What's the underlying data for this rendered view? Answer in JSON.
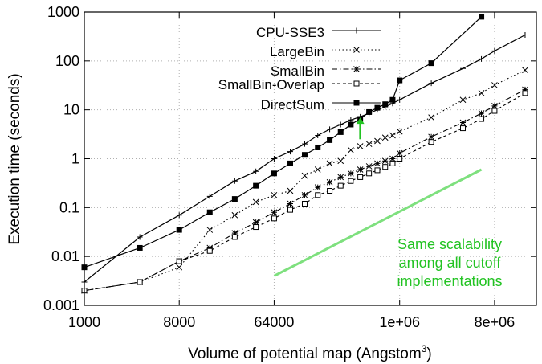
{
  "chart_data": {
    "type": "line",
    "title": "",
    "xlabel": "Volume of potential map (Angstom",
    "xlabel_superscript": "3",
    "xlabel_suffix": ")",
    "ylabel": "Execution time (seconds)",
    "xscale": "log",
    "yscale": "log",
    "xlim": [
      1000,
      20000000
    ],
    "ylim": [
      0.001,
      1000
    ],
    "x_ticks": [
      1000,
      8000,
      64000,
      1000000,
      8000000
    ],
    "x_tick_labels": [
      "1000",
      "8000",
      "64000",
      "1e+06",
      "8e+06"
    ],
    "y_ticks": [
      0.001,
      0.01,
      0.1,
      1,
      10,
      100,
      1000
    ],
    "y_tick_labels": [
      "0.001",
      "0.01",
      "0.1",
      "1",
      "10",
      "100",
      "1000"
    ],
    "grid": true,
    "legend_position": "top-left",
    "series": [
      {
        "name": "CPU-SSE3",
        "marker": "plus",
        "dash": "solid",
        "points": [
          [
            1000,
            0.003
          ],
          [
            3375,
            0.025
          ],
          [
            8000,
            0.07
          ],
          [
            15625,
            0.17
          ],
          [
            27000,
            0.35
          ],
          [
            42875,
            0.55
          ],
          [
            64000,
            1.0
          ],
          [
            91125,
            1.4
          ],
          [
            125000,
            2.0
          ],
          [
            166375,
            3.0
          ],
          [
            216000,
            4.0
          ],
          [
            274625,
            5.0
          ],
          [
            343000,
            6.2
          ],
          [
            421875,
            7.2
          ],
          [
            512000,
            8.5
          ],
          [
            614125,
            10
          ],
          [
            729000,
            11.5
          ],
          [
            857375,
            13.5
          ],
          [
            1000000,
            16
          ],
          [
            2000000,
            35
          ],
          [
            4000000,
            70
          ],
          [
            6000000,
            110
          ],
          [
            8000000,
            160
          ],
          [
            15625000,
            340
          ]
        ]
      },
      {
        "name": "LargeBin",
        "marker": "x",
        "dash": "dotted",
        "points": [
          [
            1000,
            0.002
          ],
          [
            3375,
            0.003
          ],
          [
            8000,
            0.006
          ],
          [
            15625,
            0.035
          ],
          [
            27000,
            0.07
          ],
          [
            42875,
            0.13
          ],
          [
            64000,
            0.18
          ],
          [
            91125,
            0.22
          ],
          [
            125000,
            0.45
          ],
          [
            166375,
            0.6
          ],
          [
            216000,
            0.8
          ],
          [
            274625,
            0.9
          ],
          [
            343000,
            1.5
          ],
          [
            421875,
            1.8
          ],
          [
            512000,
            2.0
          ],
          [
            614125,
            2.3
          ],
          [
            729000,
            2.7
          ],
          [
            857375,
            3.0
          ],
          [
            1000000,
            3.6
          ],
          [
            2000000,
            7.0
          ],
          [
            4000000,
            16
          ],
          [
            6000000,
            22
          ],
          [
            8000000,
            32
          ],
          [
            15625000,
            65
          ]
        ]
      },
      {
        "name": "SmallBin",
        "marker": "star",
        "dash": "dashdot",
        "points": [
          [
            1000,
            0.002
          ],
          [
            3375,
            0.003
          ],
          [
            8000,
            0.008
          ],
          [
            15625,
            0.015
          ],
          [
            27000,
            0.03
          ],
          [
            42875,
            0.05
          ],
          [
            64000,
            0.08
          ],
          [
            91125,
            0.12
          ],
          [
            125000,
            0.18
          ],
          [
            166375,
            0.26
          ],
          [
            216000,
            0.33
          ],
          [
            274625,
            0.42
          ],
          [
            343000,
            0.5
          ],
          [
            421875,
            0.6
          ],
          [
            512000,
            0.7
          ],
          [
            614125,
            0.8
          ],
          [
            729000,
            0.9
          ],
          [
            857375,
            1.0
          ],
          [
            1000000,
            1.3
          ],
          [
            2000000,
            2.8
          ],
          [
            4000000,
            5.5
          ],
          [
            6000000,
            8.5
          ],
          [
            8000000,
            12
          ],
          [
            15625000,
            26
          ]
        ]
      },
      {
        "name": "SmallBin-Overlap",
        "marker": "square-open",
        "dash": "dashed",
        "points": [
          [
            1000,
            0.002
          ],
          [
            3375,
            0.003
          ],
          [
            8000,
            0.008
          ],
          [
            15625,
            0.013
          ],
          [
            27000,
            0.025
          ],
          [
            42875,
            0.04
          ],
          [
            64000,
            0.06
          ],
          [
            91125,
            0.09
          ],
          [
            125000,
            0.12
          ],
          [
            166375,
            0.18
          ],
          [
            216000,
            0.22
          ],
          [
            274625,
            0.28
          ],
          [
            343000,
            0.35
          ],
          [
            421875,
            0.42
          ],
          [
            512000,
            0.5
          ],
          [
            614125,
            0.58
          ],
          [
            729000,
            0.68
          ],
          [
            857375,
            0.8
          ],
          [
            1000000,
            1.0
          ],
          [
            2000000,
            2.2
          ],
          [
            4000000,
            4.2
          ],
          [
            6000000,
            6.5
          ],
          [
            8000000,
            9.5
          ],
          [
            15625000,
            22
          ]
        ]
      },
      {
        "name": "DirectSum",
        "marker": "square-filled",
        "dash": "solid",
        "points": [
          [
            1000,
            0.006
          ],
          [
            3375,
            0.015
          ],
          [
            8000,
            0.035
          ],
          [
            15625,
            0.08
          ],
          [
            27000,
            0.15
          ],
          [
            42875,
            0.28
          ],
          [
            64000,
            0.5
          ],
          [
            91125,
            0.8
          ],
          [
            125000,
            1.2
          ],
          [
            166375,
            1.7
          ],
          [
            216000,
            2.4
          ],
          [
            274625,
            3.5
          ],
          [
            343000,
            5.0
          ],
          [
            421875,
            6.5
          ],
          [
            512000,
            9.0
          ],
          [
            614125,
            11
          ],
          [
            729000,
            13
          ],
          [
            857375,
            16
          ],
          [
            1000000,
            40
          ],
          [
            2000000,
            90
          ],
          [
            6000000,
            800
          ]
        ]
      }
    ],
    "annotations": [
      {
        "kind": "arrow",
        "color": "#22c322",
        "from": [
          421875,
          2.5
        ],
        "to": [
          421875,
          7.0
        ]
      },
      {
        "kind": "line",
        "color": "#7ee07e",
        "from": [
          64000,
          0.004
        ],
        "to": [
          6000000,
          0.6
        ]
      },
      {
        "kind": "text",
        "color": "#22c322",
        "lines": [
          "Same scalability",
          "among all cutoff",
          "implementations"
        ]
      }
    ]
  }
}
